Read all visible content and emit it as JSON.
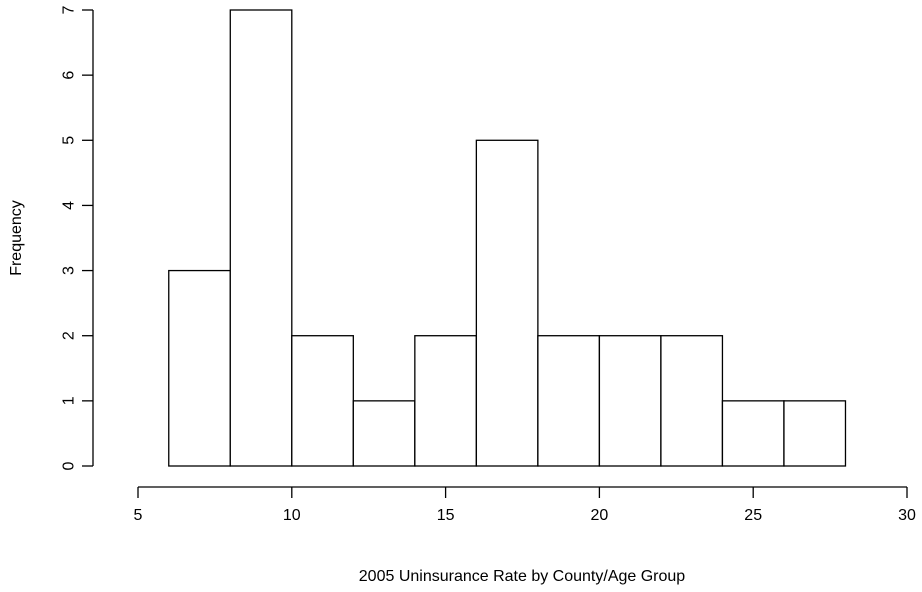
{
  "chart_data": {
    "type": "bar",
    "subtype": "histogram",
    "title": "",
    "xlabel": "2005 Uninsurance Rate by County/Age Group",
    "ylabel": "Frequency",
    "bins": [
      {
        "start": 6,
        "end": 8,
        "count": 3
      },
      {
        "start": 8,
        "end": 10,
        "count": 7
      },
      {
        "start": 10,
        "end": 12,
        "count": 2
      },
      {
        "start": 12,
        "end": 14,
        "count": 1
      },
      {
        "start": 14,
        "end": 16,
        "count": 2
      },
      {
        "start": 16,
        "end": 18,
        "count": 5
      },
      {
        "start": 18,
        "end": 20,
        "count": 2
      },
      {
        "start": 20,
        "end": 22,
        "count": 2
      },
      {
        "start": 22,
        "end": 24,
        "count": 2
      },
      {
        "start": 24,
        "end": 26,
        "count": 1
      },
      {
        "start": 26,
        "end": 28,
        "count": 1
      }
    ],
    "xlim": [
      5,
      30
    ],
    "ylim": [
      0,
      7
    ],
    "x_ticks": [
      5,
      10,
      15,
      20,
      25,
      30
    ],
    "y_ticks": [
      0,
      1,
      2,
      3,
      4,
      5,
      6,
      7
    ],
    "grid": false,
    "bar_fill": "#ffffff",
    "bar_stroke": "#000000"
  }
}
